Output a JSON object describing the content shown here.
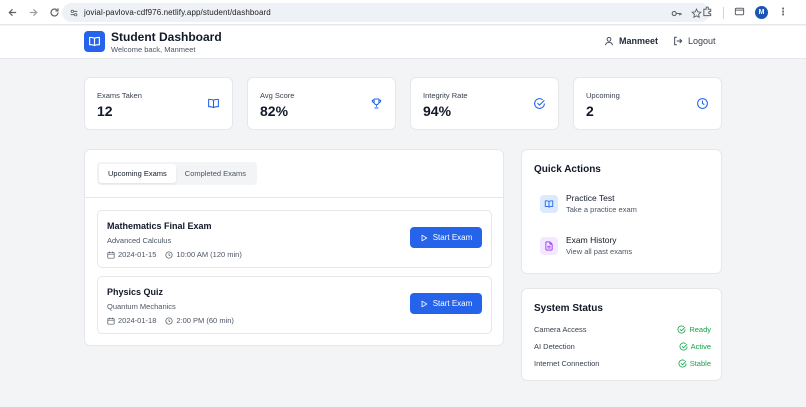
{
  "browser": {
    "url": "jovial-pavlova-cdf976.netlify.app/student/dashboard",
    "profile_initial": "M"
  },
  "header": {
    "title": "Student Dashboard",
    "subtitle": "Welcome back, Manmeet",
    "user_name": "Manmeet",
    "logout_label": "Logout"
  },
  "stats": [
    {
      "label": "Exams Taken",
      "value": "12",
      "icon": "book-open-icon",
      "color": "#2563eb"
    },
    {
      "label": "Avg Score",
      "value": "82%",
      "icon": "trophy-icon",
      "color": "#2563eb"
    },
    {
      "label": "Integrity Rate",
      "value": "94%",
      "icon": "check-circle-icon",
      "color": "#2563eb"
    },
    {
      "label": "Upcoming",
      "value": "2",
      "icon": "clock-icon",
      "color": "#2563eb"
    }
  ],
  "exams": {
    "tabs": [
      {
        "label": "Upcoming Exams",
        "active": true
      },
      {
        "label": "Completed Exams",
        "active": false
      }
    ],
    "items": [
      {
        "title": "Mathematics Final Exam",
        "subject": "Advanced Calculus",
        "date": "2024-01-15",
        "time": "10:00 AM (120 min)",
        "button": "Start Exam"
      },
      {
        "title": "Physics Quiz",
        "subject": "Quantum Mechanics",
        "date": "2024-01-18",
        "time": "2:00 PM (60 min)",
        "button": "Start Exam"
      }
    ]
  },
  "quick_actions": {
    "title": "Quick Actions",
    "items": [
      {
        "title": "Practice Test",
        "subtitle": "Take a practice exam",
        "icon": "book-open-icon",
        "color": "#2563eb",
        "bg": "#dbeafe"
      },
      {
        "title": "Exam History",
        "subtitle": "View all past exams",
        "icon": "file-text-icon",
        "color": "#9333ea",
        "bg": "#f3e8ff"
      }
    ]
  },
  "system_status": {
    "title": "System Status",
    "items": [
      {
        "label": "Camera Access",
        "status": "Ready"
      },
      {
        "label": "AI Detection",
        "status": "Active"
      },
      {
        "label": "Internet Connection",
        "status": "Stable"
      }
    ],
    "status_color": "#16a34a"
  },
  "colors": {
    "accent": "#2563eb",
    "background": "#f3f4f6"
  }
}
